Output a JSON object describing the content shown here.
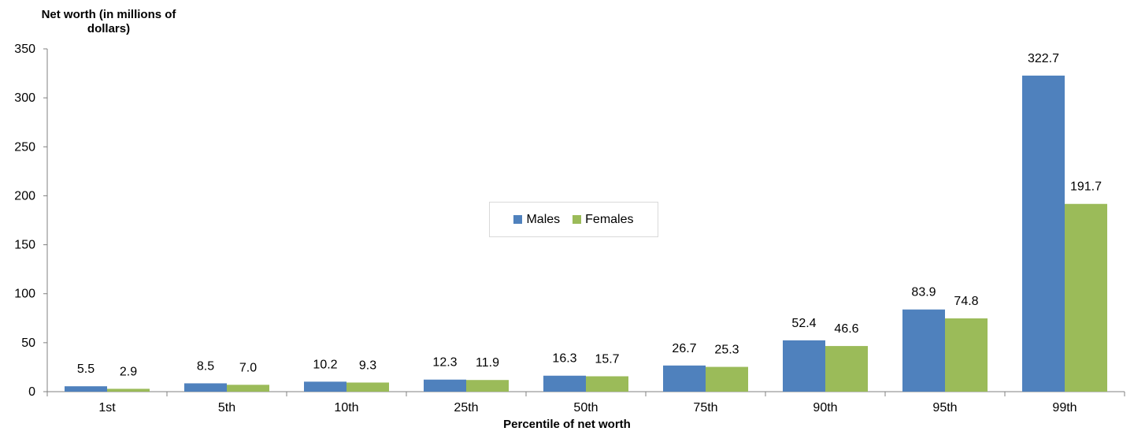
{
  "chart_data": {
    "type": "bar",
    "ylabel": "Net worth (in millions of dollars)",
    "ylabel_lines": [
      "Net worth (in millions of",
      "dollars)"
    ],
    "xlabel": "Percentile of net worth",
    "categories": [
      "1st",
      "5th",
      "10th",
      "25th",
      "50th",
      "75th",
      "90th",
      "95th",
      "99th"
    ],
    "series": [
      {
        "name": "Males",
        "color": "#4f81bd",
        "values": [
          5.5,
          8.5,
          10.2,
          12.3,
          16.3,
          26.7,
          52.4,
          83.9,
          322.7
        ]
      },
      {
        "name": "Females",
        "color": "#9bbb59",
        "values": [
          2.9,
          7.0,
          9.3,
          11.9,
          15.7,
          25.3,
          46.6,
          74.8,
          191.7
        ]
      }
    ],
    "data_labels": [
      [
        "5.5",
        "8.5",
        "10.2",
        "12.3",
        "16.3",
        "26.7",
        "52.4",
        "83.9",
        "322.7"
      ],
      [
        "2.9",
        "7.0",
        "9.3",
        "11.9",
        "15.7",
        "25.3",
        "46.6",
        "74.8",
        "191.7"
      ]
    ],
    "ylim": [
      0,
      350
    ],
    "yticks": [
      0,
      50,
      100,
      150,
      200,
      250,
      300,
      350
    ],
    "grid": false,
    "legend_position": "center"
  }
}
